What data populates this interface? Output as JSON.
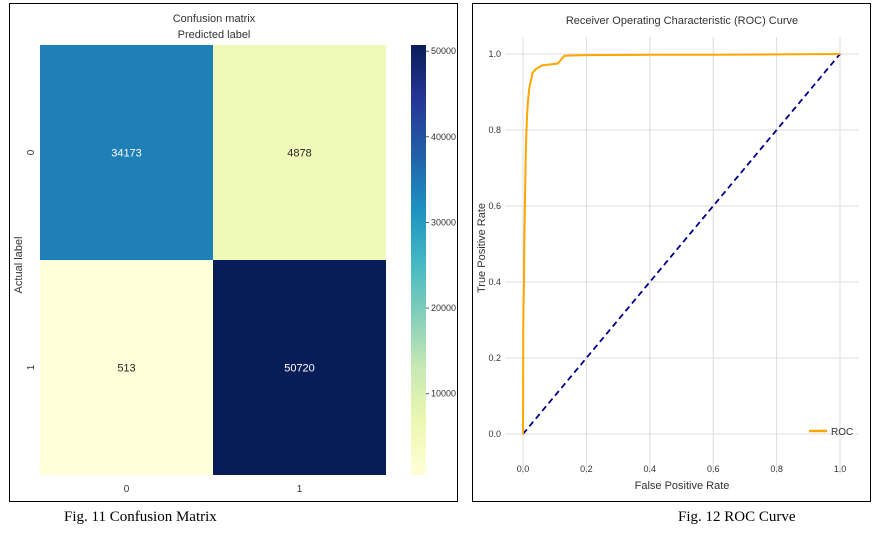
{
  "figures": {
    "left_caption": "Fig. 11 Confusion Matrix",
    "right_caption": "Fig. 12 ROC Curve"
  },
  "chart_data": [
    {
      "type": "heatmap",
      "title": "Confusion matrix",
      "subtitle": "Predicted label",
      "xlabel": "",
      "ylabel": "Actual label",
      "x_categories": [
        "0",
        "1"
      ],
      "y_categories": [
        "0",
        "1"
      ],
      "values": [
        [
          34173,
          4878
        ],
        [
          513,
          50720
        ]
      ],
      "colormap": "YlGnBu",
      "colorbar": {
        "ticks": [
          10000,
          20000,
          30000,
          40000,
          50000
        ],
        "range": [
          513,
          50720
        ]
      },
      "colors": {
        "c1": "#1f80b8",
        "c2": "#eff9b8",
        "c3": "#ffffd9",
        "c4": "#081d58"
      }
    },
    {
      "type": "line",
      "title": "Receiver Operating Characteristic (ROC) Curve",
      "xlabel": "False Positive Rate",
      "ylabel": "True Positive Rate",
      "xlim": [
        0,
        1
      ],
      "ylim": [
        0,
        1
      ],
      "xticks": [
        "0.0",
        "0.2",
        "0.4",
        "0.6",
        "0.8",
        "1.0"
      ],
      "yticks": [
        "0.0",
        "0.2",
        "0.4",
        "0.6",
        "0.8",
        "1.0"
      ],
      "grid": true,
      "legend_position": "bottom-right",
      "series": [
        {
          "name": "ROC",
          "color": "#ffa500",
          "x": [
            0,
            0.001,
            0.002,
            0.003,
            0.004,
            0.006,
            0.008,
            0.01,
            0.013,
            0.016,
            0.02,
            0.025,
            0.03,
            0.04,
            0.05,
            0.06,
            0.08,
            0.11,
            0.12,
            0.13,
            0.15,
            0.2,
            0.4,
            0.6,
            0.8,
            1.0
          ],
          "y": [
            0,
            0.3,
            0.35,
            0.4,
            0.5,
            0.6,
            0.7,
            0.78,
            0.84,
            0.88,
            0.91,
            0.93,
            0.95,
            0.96,
            0.965,
            0.97,
            0.972,
            0.975,
            0.985,
            0.995,
            0.996,
            0.997,
            0.998,
            0.998,
            0.999,
            1.0
          ]
        },
        {
          "name": "",
          "color": "#00008b",
          "dashed": true,
          "x": [
            0,
            1
          ],
          "y": [
            0,
            1
          ]
        }
      ]
    }
  ]
}
